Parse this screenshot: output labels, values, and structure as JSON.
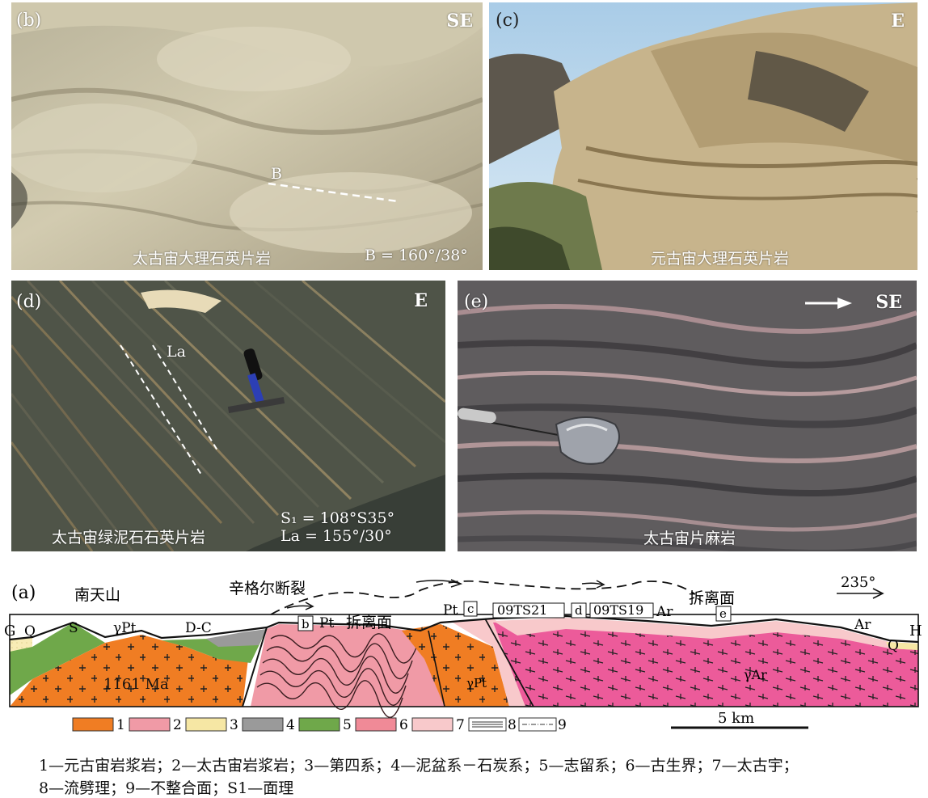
{
  "panels": {
    "b": {
      "label": "(b)",
      "direction": "SE",
      "line_label": "B",
      "unit": "太古宙大理石英片岩",
      "measure": "B = 160°/38°"
    },
    "c": {
      "label": "(c)",
      "direction": "E",
      "unit": "元古宙大理石英片岩"
    },
    "d": {
      "label": "(d)",
      "direction": "E",
      "line_label": "La",
      "unit": "太古宙绿泥石石英片岩",
      "measure1": "S₁ = 108°S35°",
      "measure2": "La = 155°/30°"
    },
    "e": {
      "label": "(e)",
      "direction": "SE",
      "unit": "太古宙片麻岩"
    }
  },
  "section": {
    "label": "(a)",
    "left_end": "G",
    "right_end": "H",
    "azimuth": "235°",
    "places": {
      "nantianshan": "南天山",
      "fault": "辛格尔断裂",
      "detach1": "拆离面",
      "detach2": "拆离面"
    },
    "units": {
      "q_left": "Q",
      "s": "S",
      "gpt_top": "γPt",
      "dc": "D-C",
      "age": "1161 Ma",
      "pt1": "Pt",
      "pt2": "Pt",
      "gpt_mid": "γPt",
      "ar1": "Ar",
      "ar2": "Ar",
      "q_right": "Q",
      "gar": "γAr"
    },
    "boxes": {
      "b": "b",
      "c": "c",
      "d": "d",
      "e": "e",
      "s21": "09TS21",
      "s19": "09TS19"
    },
    "scale": "5 km"
  },
  "legend": {
    "items": [
      "1",
      "2",
      "3",
      "4",
      "5",
      "6",
      "7",
      "8",
      "9"
    ],
    "line1": "1—元古宙岩浆岩；2—太古宙岩浆岩；3—第四系；4—泥盆系－石炭系；5—志留系；6—古生界；7—太古宇；",
    "line2": "8—流劈理；9—不整合面；S1—面理"
  },
  "colors": {
    "proterozoic_magmatic": "#f07d23",
    "archean_magmatic": "#ec5b9a",
    "quaternary": "#f6e7a4",
    "devonian_carboniferous": "#9a9a9a",
    "silurian": "#6fa84a",
    "paleozoic": "#f09aa6",
    "archean": "#f8c9cb"
  }
}
